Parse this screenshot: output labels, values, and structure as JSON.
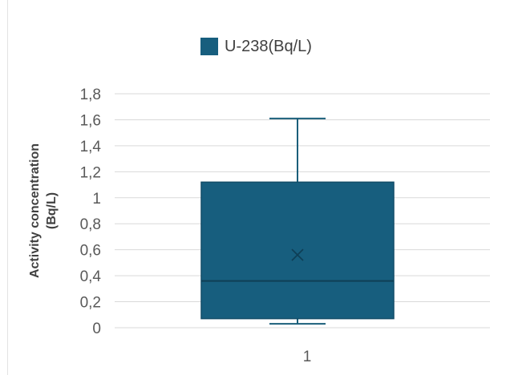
{
  "legend": {
    "label": "U-238(Bq/L)"
  },
  "colors": {
    "box": "#175e7e",
    "line": "#1a5e7a",
    "grid": "#d9d9d9",
    "axis_text": "#595959"
  },
  "chart_data": {
    "type": "box",
    "xlabel": "",
    "ylabel": "Activity concentration\n(Bq/L)",
    "ylim": [
      0,
      1.8
    ],
    "yticks": [
      "0",
      "0,2",
      "0,4",
      "0,6",
      "0,8",
      "1",
      "1,2",
      "1,4",
      "1,6",
      "1,8"
    ],
    "yticks_values": [
      0,
      0.2,
      0.4,
      0.6,
      0.8,
      1.0,
      1.2,
      1.4,
      1.6,
      1.8
    ],
    "categories": [
      "1"
    ],
    "series": [
      {
        "name": "U-238(Bq/L)",
        "min": 0.03,
        "q1": 0.07,
        "median": 0.36,
        "q3": 1.12,
        "max": 1.61,
        "mean": 0.56
      }
    ],
    "grid": true,
    "legend_position": "top"
  }
}
